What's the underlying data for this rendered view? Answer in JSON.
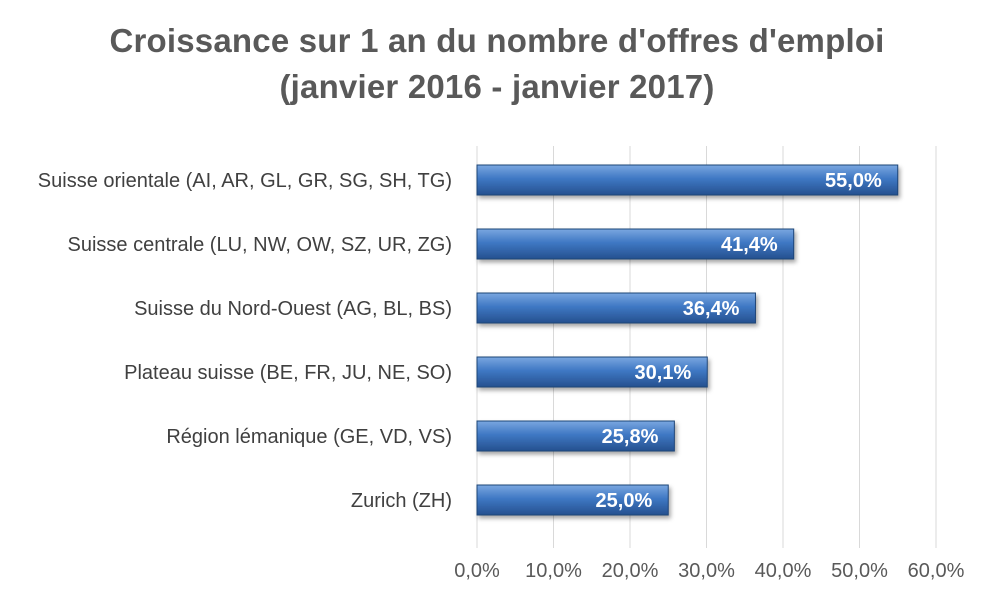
{
  "chart_data": {
    "type": "bar",
    "orientation": "horizontal",
    "title": "Croissance sur 1 an du nombre d'offres d'emploi",
    "subtitle": "(janvier 2016 - janvier 2017)",
    "categories": [
      "Suisse orientale (AI, AR, GL, GR, SG, SH, TG)",
      "Suisse centrale (LU, NW, OW, SZ, UR, ZG)",
      "Suisse du Nord-Ouest (AG, BL, BS)",
      "Plateau suisse (BE, FR, JU, NE, SO)",
      "Région lémanique (GE, VD, VS)",
      "Zurich (ZH)"
    ],
    "values": [
      55.0,
      41.4,
      36.4,
      30.1,
      25.8,
      25.0
    ],
    "data_labels": [
      "55,0%",
      "41,4%",
      "36,4%",
      "30,1%",
      "25,8%",
      "25,0%"
    ],
    "xlim": [
      0,
      60
    ],
    "x_ticks": [
      "0,0%",
      "10,0%",
      "20,0%",
      "30,0%",
      "40,0%",
      "50,0%",
      "60,0%"
    ],
    "grid": "vertical",
    "legend": "none",
    "colors": {
      "bar_light": "#7aa7e0",
      "bar_mid": "#3f78c4",
      "bar_dark": "#25508f",
      "bar_edge": "#1f4477",
      "grid": "#d9d9d9",
      "title": "#595959"
    }
  }
}
